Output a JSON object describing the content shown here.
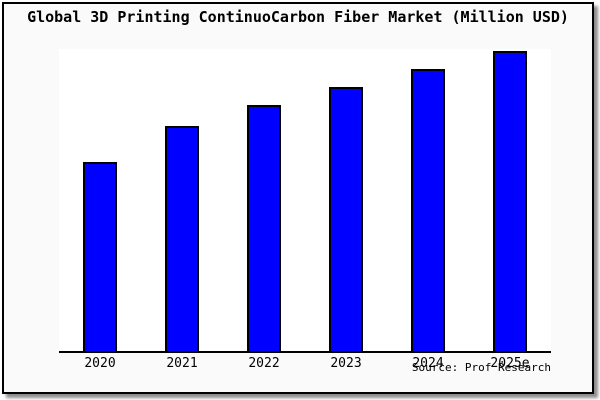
{
  "title": "Global 3D Printing ContinuoCarbon Fiber Market (Million USD)",
  "source": "Source: Prof Research",
  "colors": {
    "bar_fill": "#0000ff",
    "bar_border": "#000000",
    "frame_background": "#fafafa",
    "plot_background": "#ffffff",
    "text": "#000000"
  },
  "chart_data": {
    "type": "bar",
    "title": "Global 3D Printing ContinuoCarbon Fiber Market (Million USD)",
    "categories": [
      "2020",
      "2021",
      "2022",
      "2023",
      "2024",
      "2025e"
    ],
    "values": [
      63,
      75,
      82,
      88,
      94,
      100
    ],
    "xlabel": "",
    "ylabel": "",
    "ylim": [
      0,
      100.7
    ],
    "y_axis_ticks_visible": false,
    "grid": false,
    "legend": false,
    "annotation": "Source: Prof Research"
  }
}
